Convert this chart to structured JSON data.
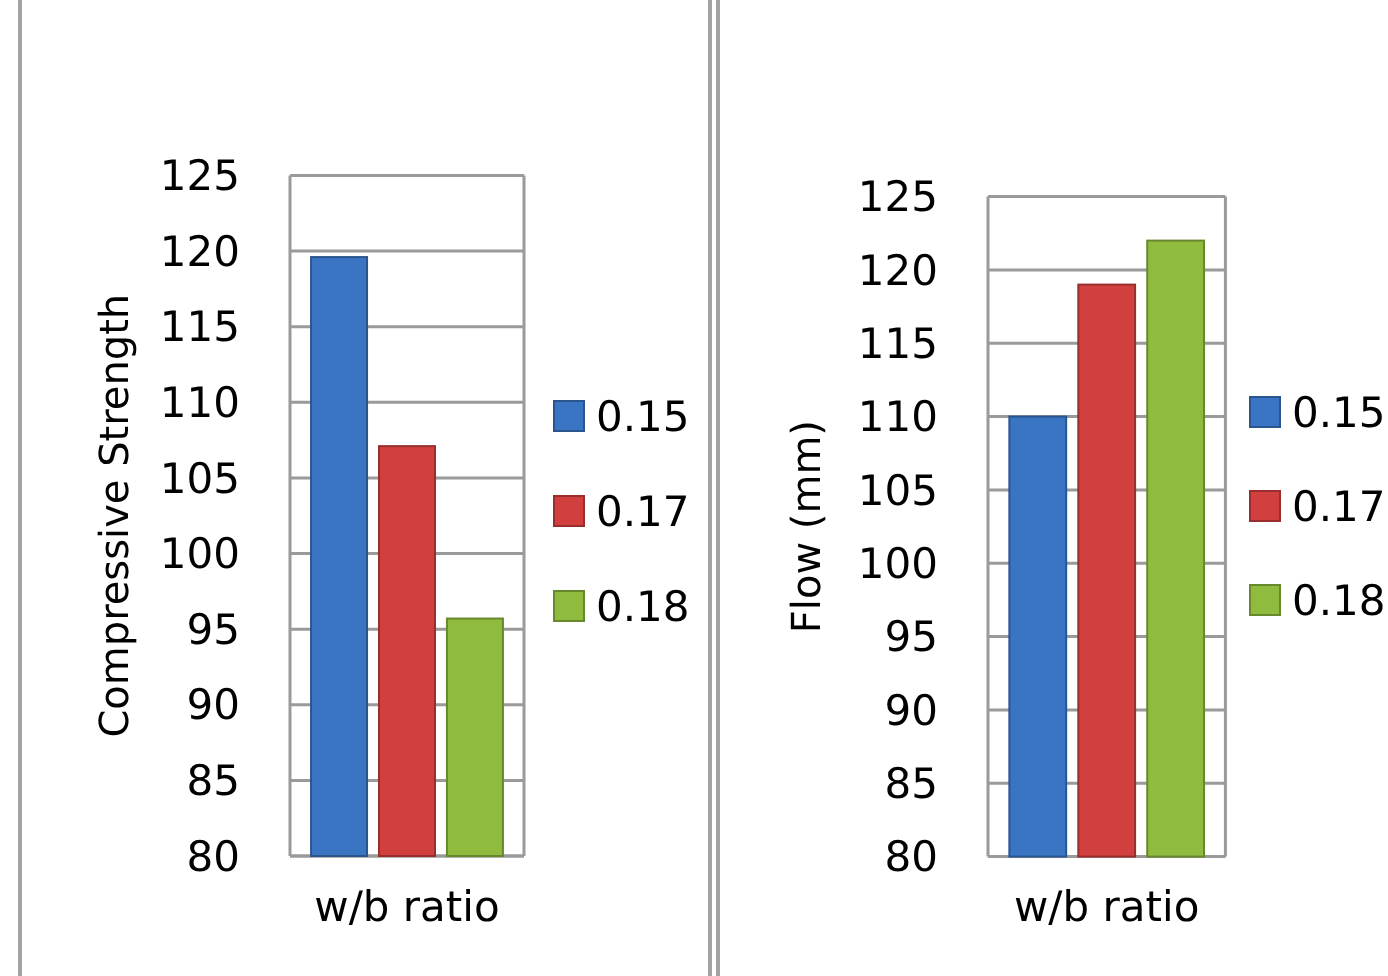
{
  "chart_data": [
    {
      "type": "bar",
      "ylabel": "Compressive Strength",
      "categories": [
        "w/b ratio"
      ],
      "series": [
        {
          "name": "0.15",
          "color": "#3a75c4",
          "values": [
            119.6
          ]
        },
        {
          "name": "0.17",
          "color": "#d13f3f",
          "values": [
            107.1
          ]
        },
        {
          "name": "0.18",
          "color": "#8fbb3f",
          "values": [
            95.7
          ]
        }
      ],
      "ylim": [
        80,
        125
      ],
      "yticks": [
        80,
        85,
        90,
        95,
        100,
        105,
        110,
        115,
        120,
        125
      ],
      "grid": "y",
      "legend": "right"
    },
    {
      "type": "bar",
      "ylabel": "Flow (mm)",
      "categories": [
        "w/b ratio"
      ],
      "series": [
        {
          "name": "0.15",
          "color": "#3a75c4",
          "values": [
            110
          ]
        },
        {
          "name": "0.17",
          "color": "#d13f3f",
          "values": [
            119
          ]
        },
        {
          "name": "0.18",
          "color": "#8fbb3f",
          "values": [
            122
          ]
        }
      ],
      "ylim": [
        80,
        125
      ],
      "yticks": [
        80,
        85,
        90,
        95,
        100,
        105,
        110,
        115,
        120,
        125
      ],
      "grid": "y",
      "legend": "right"
    }
  ]
}
